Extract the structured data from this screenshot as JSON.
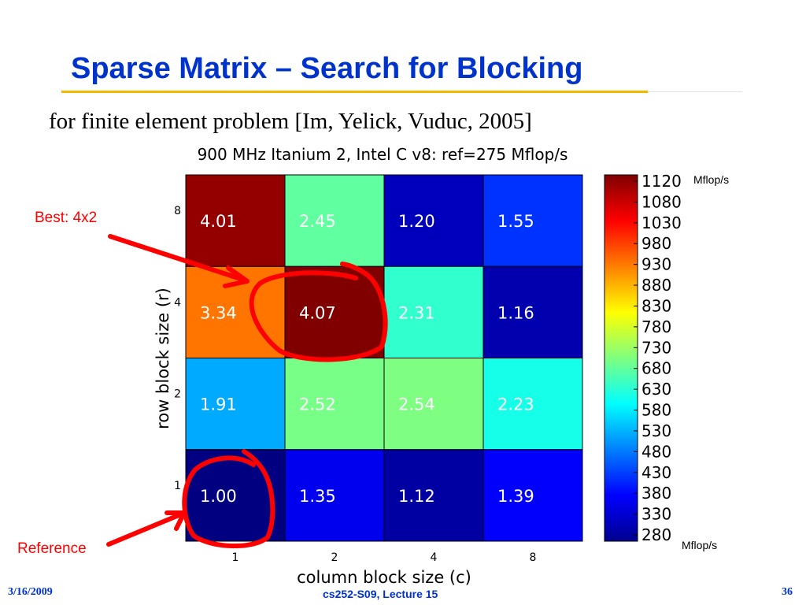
{
  "slide": {
    "title": "Sparse Matrix – Search for Blocking",
    "subtitle": "for finite element problem [Im, Yelick, Vuduc, 2005]",
    "footer_date": "3/16/2009",
    "footer_course": "cs252-S09, Lecture 15",
    "footer_page": "36"
  },
  "annotations": {
    "best": "Best: 4x2",
    "reference": "Reference",
    "color": "#ff0000"
  },
  "chart_data": {
    "type": "heatmap",
    "title": "900 MHz Itanium 2, Intel C v8: ref=275 Mflop/s",
    "xlabel": "column block size (c)",
    "ylabel": "row block size (r)",
    "x_categories": [
      "1",
      "2",
      "4",
      "8"
    ],
    "y_categories": [
      "8",
      "4",
      "2",
      "1"
    ],
    "values": [
      [
        4.01,
        2.45,
        1.2,
        1.55
      ],
      [
        3.34,
        4.07,
        2.31,
        1.16
      ],
      [
        1.91,
        2.52,
        2.54,
        2.23
      ],
      [
        1.0,
        1.35,
        1.12,
        1.39
      ]
    ],
    "value_labels": [
      [
        "4.01",
        "2.45",
        "1.20",
        "1.55"
      ],
      [
        "3.34",
        "4.07",
        "2.31",
        "1.16"
      ],
      [
        "1.91",
        "2.52",
        "2.54",
        "2.23"
      ],
      [
        "1.00",
        "1.35",
        "1.12",
        "1.39"
      ]
    ],
    "reference_mflops": 275,
    "colorbar": {
      "unit": "Mflop/s",
      "min": 280,
      "max": 1120,
      "ticks": [
        "1120",
        "1080",
        "1030",
        "980",
        "930",
        "880",
        "830",
        "780",
        "730",
        "680",
        "630",
        "580",
        "530",
        "480",
        "430",
        "380",
        "330",
        "280"
      ],
      "colormap": "jet"
    },
    "grid": true
  },
  "colors": {
    "title": "#0033cc",
    "title_rule": "#f2b800",
    "footer": "#0033cc"
  }
}
